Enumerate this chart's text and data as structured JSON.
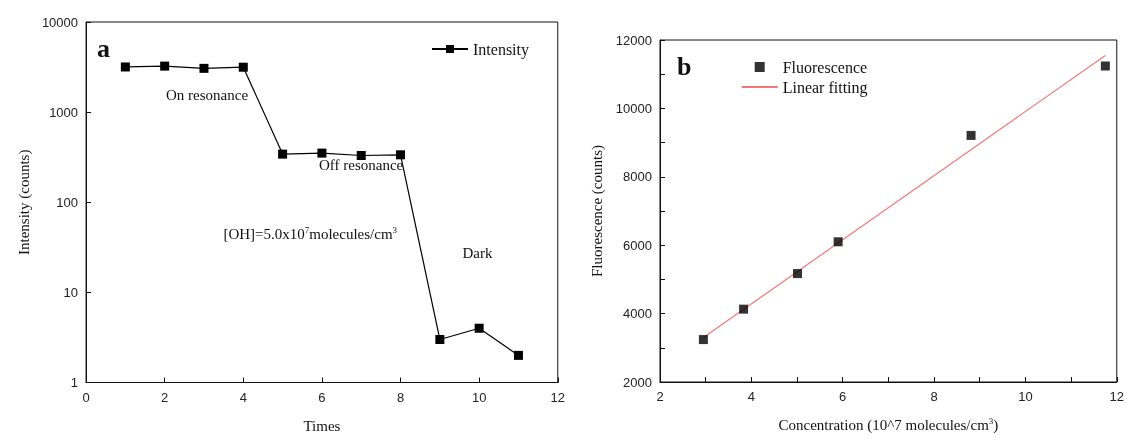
{
  "chart_data": [
    {
      "type": "line",
      "title": "a",
      "xlabel": "Times",
      "ylabel": "Intensity (counts)",
      "log": "y",
      "grid": false,
      "legend": "top right",
      "marker": "square",
      "line_style": "solid",
      "x": [
        1,
        2,
        3,
        4,
        5,
        6,
        7,
        8,
        9,
        10,
        11
      ],
      "series": [
        {
          "name": "Intensity",
          "color": "#000000",
          "values": [
            3170,
            3240,
            3060,
            3150,
            342,
            351,
            330,
            336,
            3.0,
            4.0,
            2.0
          ]
        }
      ],
      "xlim": [
        0,
        12
      ],
      "xticks": [
        0,
        2,
        4,
        6,
        8,
        10,
        12
      ],
      "ylim": [
        1,
        10000
      ],
      "yticks": [
        1,
        10,
        100,
        1000,
        10000
      ],
      "annotations": [
        "On resonance",
        "Off resonance",
        "Dark",
        "[OH]=5.0x10$^{7}$molecules/cm$^{3}$"
      ]
    },
    {
      "type": "scatter",
      "title": "b",
      "xlabel": "Concentration (10^7 molecules/cm$^{3}$)",
      "ylabel": "Fluorescence (counts)",
      "grid": false,
      "legend": "top",
      "marker": "square",
      "x": [
        2.95,
        3.83,
        5.01,
        5.9,
        8.81,
        11.75
      ],
      "series": [
        {
          "name": "Fluorescence",
          "color": "#000000",
          "values": [
            3240,
            4130,
            5170,
            6100,
            9210,
            11240
          ]
        },
        {
          "name": "Linear fitting",
          "type": "line",
          "color": "#f07878",
          "marker": "none",
          "line_style": "solid",
          "x": [
            2.95,
            11.75
          ],
          "values": [
            3300,
            11550
          ]
        }
      ],
      "xlim": [
        2,
        12
      ],
      "xticks": [
        2,
        {
          "value": 3,
          "label": null
        },
        4,
        {
          "value": 5,
          "label": null
        },
        6,
        {
          "value": 7,
          "label": null
        },
        8,
        {
          "value": 9,
          "label": null
        },
        10,
        {
          "value": 11,
          "label": null
        },
        12
      ],
      "ylim": [
        2000,
        12000
      ],
      "yticks": [
        2000,
        {
          "value": 3000,
          "label": null
        },
        4000,
        {
          "value": 5000,
          "label": null
        },
        6000,
        {
          "value": 7000,
          "label": null
        },
        8000,
        {
          "value": 9000,
          "label": null
        },
        10000,
        {
          "value": 11000,
          "label": null
        },
        12000
      ]
    }
  ]
}
